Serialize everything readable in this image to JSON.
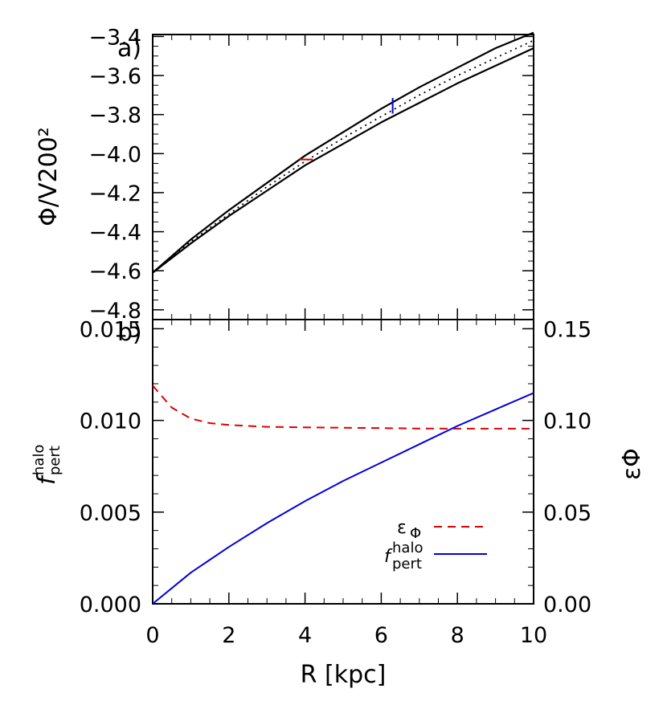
{
  "chart_data": [
    {
      "panel_label": "a)",
      "type": "line",
      "ylabel": "Φ/V200²",
      "xlim": [
        0,
        10
      ],
      "ylim": [
        -4.85,
        -3.39
      ],
      "yticks": [
        "−3.4",
        "−3.6",
        "−3.8",
        "−4.0",
        "−4.2",
        "−4.4",
        "−4.6",
        "−4.8"
      ],
      "ytick_values": [
        -3.4,
        -3.6,
        -3.8,
        -4.0,
        -4.2,
        -4.4,
        -4.6,
        -4.8
      ],
      "series": [
        {
          "style": "solid",
          "color": "#000000",
          "x": [
            0,
            1,
            2,
            3,
            4,
            5,
            6,
            7,
            8,
            9,
            10
          ],
          "y": [
            -4.61,
            -4.44,
            -4.29,
            -4.15,
            -4.01,
            -3.89,
            -3.77,
            -3.66,
            -3.56,
            -3.46,
            -3.38
          ]
        },
        {
          "style": "dotted",
          "color": "#000000",
          "x": [
            0,
            1,
            2,
            3,
            4,
            5,
            6,
            7,
            8,
            9,
            10
          ],
          "y": [
            -4.61,
            -4.45,
            -4.31,
            -4.17,
            -4.04,
            -3.92,
            -3.81,
            -3.7,
            -3.6,
            -3.51,
            -3.42
          ]
        },
        {
          "style": "solid",
          "color": "#000000",
          "x": [
            0,
            1,
            2,
            3,
            4,
            5,
            6,
            7,
            8,
            9,
            10
          ],
          "y": [
            -4.61,
            -4.46,
            -4.32,
            -4.19,
            -4.06,
            -3.95,
            -3.84,
            -3.74,
            -3.64,
            -3.55,
            -3.46
          ]
        }
      ],
      "markers": [
        {
          "kind": "horizontal",
          "color": "#dd0000",
          "x": [
            3.85,
            4.2
          ],
          "y": -4.03
        },
        {
          "kind": "vertical",
          "color": "#0000dd",
          "x": 6.3,
          "y": [
            -3.795,
            -3.715
          ]
        }
      ]
    },
    {
      "panel_label": "b)",
      "type": "line",
      "ylabel_left": "f",
      "ylabel_left_sup": "halo",
      "ylabel_left_sub": "pert",
      "ylabel_right": "εΦ",
      "xlabel": "R  [kpc]",
      "xlim": [
        0,
        10
      ],
      "xticks": [
        "0",
        "2",
        "4",
        "6",
        "8",
        "10"
      ],
      "xtick_values": [
        0,
        2,
        4,
        6,
        8,
        10
      ],
      "ylim_left": [
        0,
        0.0155
      ],
      "yticks_left": [
        "0.000",
        "0.005",
        "0.010",
        "0.015"
      ],
      "ytick_values_left": [
        0,
        0.005,
        0.01,
        0.015
      ],
      "ylim_right": [
        0,
        0.155
      ],
      "yticks_right": [
        "0.00",
        "0.05",
        "0.10",
        "0.15"
      ],
      "ytick_values_right": [
        0,
        0.05,
        0.1,
        0.15
      ],
      "series": [
        {
          "name": "εΦ",
          "axis": "right",
          "style": "dashed",
          "color": "#dd0000",
          "x": [
            0,
            0.5,
            1,
            1.5,
            2,
            3,
            4,
            5,
            6,
            7,
            8,
            9,
            10
          ],
          "y": [
            0.119,
            0.107,
            0.101,
            0.0985,
            0.0975,
            0.0965,
            0.0962,
            0.096,
            0.0958,
            0.0956,
            0.0955,
            0.0955,
            0.0955
          ]
        },
        {
          "name": "f pert halo",
          "axis": "left",
          "style": "solid",
          "color": "#0000dd",
          "x": [
            0,
            1,
            2,
            3,
            4,
            5,
            6,
            7,
            8,
            9,
            10
          ],
          "y": [
            0,
            0.0017,
            0.0031,
            0.0044,
            0.0056,
            0.0067,
            0.0077,
            0.0087,
            0.0097,
            0.0106,
            0.0115
          ]
        }
      ],
      "legend": [
        {
          "label": "ε",
          "label_sub": "Φ",
          "style": "dashed",
          "color": "#dd0000"
        },
        {
          "label": "f",
          "label_sup": "halo",
          "label_sub": "pert",
          "style": "solid",
          "color": "#0000dd"
        }
      ],
      "legend_position": "lower-right"
    }
  ]
}
